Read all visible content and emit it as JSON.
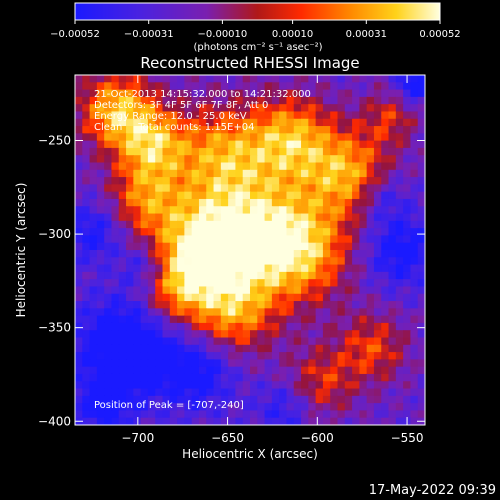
{
  "chart_data": {
    "type": "heatmap",
    "title": "Reconstructed RHESSI Image",
    "xlabel": "Heliocentric X (arcsec)",
    "ylabel": "Heliocentric Y (arcsec)",
    "xlim": [
      -735,
      -540
    ],
    "ylim": [
      -402,
      -215
    ],
    "xticks": [
      -700,
      -650,
      -600,
      -550
    ],
    "yticks": [
      -250,
      -300,
      -350,
      -400
    ],
    "colorbar": {
      "ticks": [
        "-0.00052",
        "-0.00031",
        "-0.00010",
        "0.00010",
        "0.00031",
        "0.00052"
      ],
      "units": "(photons cm⁻² s⁻¹ asec⁻²)",
      "range": [
        -0.00052,
        0.00052
      ],
      "colors": [
        "#1a1aff",
        "#7a1fb0",
        "#b01818",
        "#ff2a00",
        "#ff8c00",
        "#ffd21a",
        "#ffffe0"
      ]
    },
    "annotations": [
      "21-Oct-2013 14:15:32.000 to 14:21:32.000",
      "Detectors: 3F 4F 5F 6F 7F 8F, Att 0",
      "Energy Range: 12.0 - 25.0 keV",
      "Clean     Total counts: 1.15E+04"
    ],
    "peak_label": "Position of Peak = [-707,-240]",
    "timestamp": "17-May-2022 09:39"
  }
}
